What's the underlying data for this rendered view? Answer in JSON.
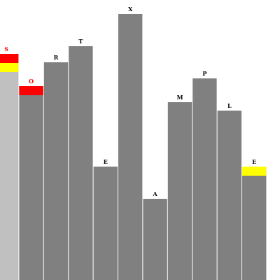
{
  "chart_data": {
    "type": "bar",
    "categories": [
      "S",
      "O",
      "R",
      "T",
      "E",
      "X",
      "A",
      "M",
      "P",
      "L",
      "E"
    ],
    "values": [
      323,
      277,
      311,
      334,
      162,
      380,
      116,
      254,
      288,
      242,
      162
    ],
    "ylim": [
      0,
      400
    ],
    "bar_colors": [
      "#c0c0c0",
      "#808080",
      "#808080",
      "#808080",
      "#808080",
      "#808080",
      "#808080",
      "#808080",
      "#808080",
      "#808080",
      "#808080"
    ],
    "cap_colors": [
      [
        "#ff0000",
        "#ffff00"
      ],
      [
        "#ff0000"
      ],
      [],
      [],
      [],
      [],
      [],
      [],
      [],
      [],
      [
        "#ffff00"
      ]
    ],
    "label_colors": [
      "#ff0000",
      "#ff0000",
      "#000000",
      "#000000",
      "#000000",
      "#000000",
      "#000000",
      "#000000",
      "#000000",
      "#000000",
      "#000000"
    ]
  }
}
